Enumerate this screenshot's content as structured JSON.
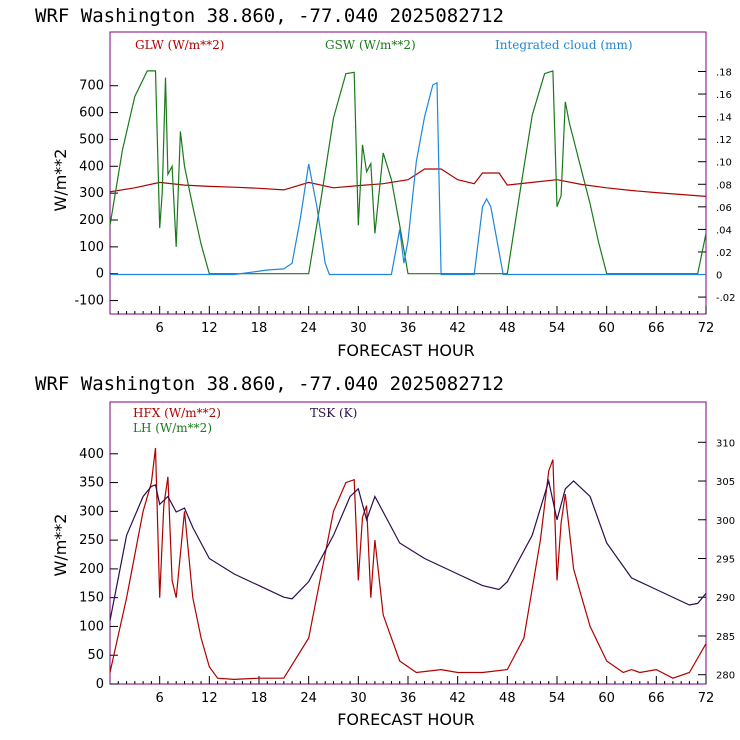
{
  "colors": {
    "glw": "#b00000",
    "gsw": "#1a7a1a",
    "cloud": "#1f86d9",
    "hfx": "#b00000",
    "lh": "#1a7a1a",
    "tsk": "#2a0f4f",
    "frame": "#800080"
  },
  "chart_data": [
    {
      "type": "line",
      "title": "WRF   Washington    38.860, -77.040  2025082712",
      "xlabel": "FORECAST HOUR",
      "ylabel": "W/m**2",
      "xlim": [
        0,
        72
      ],
      "ylim": [
        -150,
        900
      ],
      "y2lim": [
        -0.035,
        0.215
      ],
      "xticks": [
        "6",
        "12",
        "18",
        "24",
        "30",
        "36",
        "42",
        "48",
        "54",
        "60",
        "66",
        "72"
      ],
      "yticks": [
        "-100",
        "0",
        "100",
        "200",
        "300",
        "400",
        "500",
        "600",
        "700"
      ],
      "y2ticks": [
        "-.02",
        "0",
        ".02",
        ".04",
        ".06",
        ".08",
        ".10",
        ".12",
        ".14",
        ".16",
        ".18"
      ],
      "series": [
        {
          "name": "GLW (W/m**2)",
          "axis": "left",
          "x": [
            0,
            3,
            6,
            9,
            12,
            15,
            18,
            21,
            24,
            27,
            30,
            33,
            36,
            38,
            40,
            42,
            44,
            45,
            47,
            48,
            51,
            54,
            57,
            60,
            63,
            66,
            69,
            72
          ],
          "y": [
            305,
            320,
            340,
            330,
            325,
            322,
            318,
            312,
            340,
            320,
            328,
            335,
            350,
            390,
            390,
            350,
            335,
            375,
            375,
            330,
            340,
            350,
            332,
            320,
            310,
            302,
            295,
            288
          ]
        },
        {
          "name": "GSW (W/m**2)",
          "axis": "left",
          "x": [
            0,
            1.5,
            3,
            4.5,
            5.5,
            6,
            6.3,
            6.7,
            7,
            7.5,
            8,
            8.5,
            9,
            10,
            11,
            12,
            24,
            25.5,
            27,
            28.5,
            29.5,
            30,
            30.5,
            31,
            31.5,
            32,
            33,
            34,
            35,
            36,
            48,
            49.5,
            51,
            52.5,
            53.5,
            54,
            54.5,
            55,
            55.5,
            56,
            57,
            58,
            59,
            60,
            71,
            72
          ],
          "y": [
            180,
            460,
            660,
            755,
            755,
            170,
            300,
            730,
            370,
            400,
            100,
            530,
            400,
            250,
            110,
            0,
            0,
            280,
            580,
            745,
            750,
            180,
            480,
            380,
            410,
            150,
            450,
            350,
            180,
            0,
            0,
            300,
            590,
            745,
            755,
            250,
            290,
            640,
            560,
            500,
            380,
            260,
            120,
            0,
            0,
            150
          ]
        },
        {
          "name": "Integrated cloud (mm)",
          "axis": "right",
          "x": [
            0,
            15,
            17,
            19,
            21,
            22,
            23,
            24,
            25,
            26,
            26.5,
            30,
            34,
            35,
            35.5,
            36,
            37,
            38,
            39,
            39.5,
            40,
            44,
            45,
            45.5,
            46,
            47,
            47.5,
            48,
            72
          ],
          "y": [
            0,
            0,
            0.002,
            0.004,
            0.005,
            0.01,
            0.05,
            0.098,
            0.06,
            0.01,
            0,
            0,
            0,
            0.04,
            0.01,
            0.03,
            0.1,
            0.14,
            0.168,
            0.17,
            0,
            0,
            0.06,
            0.067,
            0.06,
            0.02,
            0,
            0,
            0
          ]
        }
      ]
    },
    {
      "type": "line",
      "title": "WRF   Washington    38.860, -77.040  2025082712",
      "xlabel": "FORECAST HOUR",
      "ylabel": "W/m**2",
      "xlim": [
        0,
        72
      ],
      "ylim": [
        0,
        490
      ],
      "y2lim": [
        278.8,
        315.2
      ],
      "xticks": [
        "6",
        "12",
        "18",
        "24",
        "30",
        "36",
        "42",
        "48",
        "54",
        "60",
        "66",
        "72"
      ],
      "yticks": [
        "0",
        "50",
        "100",
        "150",
        "200",
        "250",
        "300",
        "350",
        "400"
      ],
      "y2ticks": [
        "280",
        "285",
        "290",
        "295",
        "300",
        "305",
        "310"
      ],
      "series": [
        {
          "name": "HFX (W/m**2)",
          "axis": "left",
          "x": [
            0,
            2,
            4,
            5,
            5.5,
            6,
            6.5,
            7,
            7.5,
            8,
            9,
            10,
            11,
            12,
            13,
            15,
            18,
            21,
            24,
            27,
            28.5,
            29.5,
            30,
            30.5,
            31,
            31.5,
            32,
            33,
            34,
            35,
            36,
            37,
            40,
            42,
            45,
            48,
            50,
            52,
            53,
            53.5,
            54,
            54.5,
            55,
            56,
            57,
            58,
            60,
            62,
            63,
            64,
            66,
            68,
            70,
            72
          ],
          "y": [
            20,
            150,
            300,
            350,
            410,
            150,
            310,
            360,
            180,
            150,
            300,
            150,
            80,
            30,
            10,
            8,
            10,
            10,
            80,
            300,
            350,
            355,
            180,
            290,
            310,
            150,
            250,
            120,
            80,
            40,
            30,
            20,
            25,
            20,
            20,
            25,
            80,
            250,
            370,
            390,
            180,
            280,
            330,
            200,
            150,
            100,
            40,
            20,
            25,
            20,
            25,
            10,
            20,
            70
          ]
        },
        {
          "name": "LH (W/m**2)",
          "axis": "left",
          "x": [],
          "y": []
        },
        {
          "name": "TSK (K)",
          "axis": "right",
          "x": [
            0,
            2,
            4,
            5,
            5.5,
            6,
            7,
            8,
            9,
            10,
            12,
            15,
            18,
            21,
            22,
            24,
            27,
            29,
            30,
            31,
            32,
            33,
            35,
            38,
            42,
            45,
            47,
            48,
            51,
            53,
            54,
            55,
            56,
            58,
            60,
            63,
            66,
            70,
            71,
            72
          ],
          "y": [
            287,
            298,
            303,
            304.3,
            304.5,
            302,
            303,
            301,
            301.5,
            299,
            295,
            293,
            291.5,
            290,
            289.8,
            292,
            298,
            303,
            304,
            300,
            303,
            301,
            297,
            295,
            293,
            291.5,
            291,
            292,
            298,
            305,
            300,
            304,
            305,
            303,
            297,
            292.5,
            291,
            289,
            289.2,
            290.5
          ]
        }
      ]
    }
  ]
}
